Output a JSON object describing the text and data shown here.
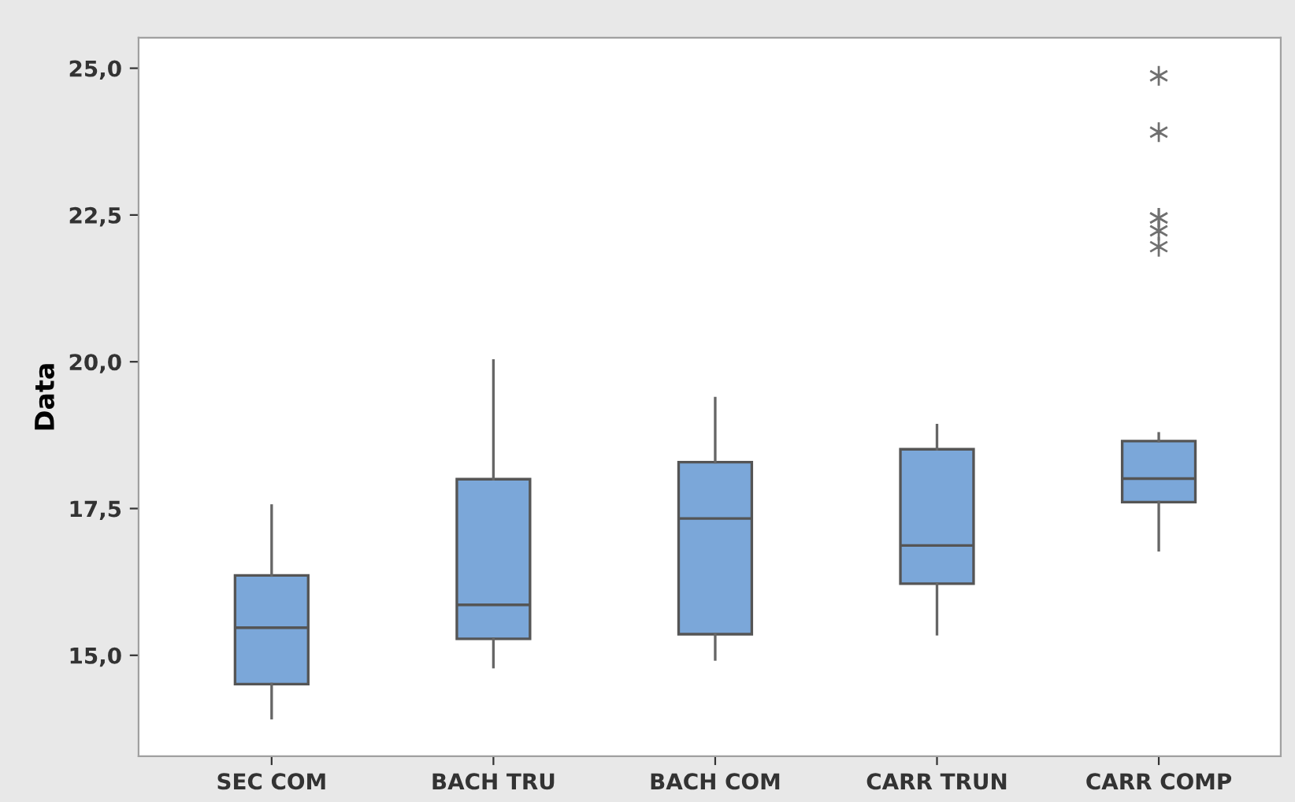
{
  "chart_data": {
    "type": "box",
    "ylabel": "Data",
    "categories": [
      "SEC COM",
      "BACH TRU",
      "BACH COM",
      "CARR TRUN",
      "CARR COMP"
    ],
    "color": "#7ba7d9",
    "boxes": [
      {
        "low": 13.93,
        "q1": 14.51,
        "median": 15.47,
        "q3": 16.36,
        "high": 17.55
      },
      {
        "low": 14.8,
        "q1": 15.28,
        "median": 15.86,
        "q3": 18.0,
        "high": 20.02
      },
      {
        "low": 14.93,
        "q1": 15.36,
        "median": 17.33,
        "q3": 18.29,
        "high": 19.38
      },
      {
        "low": 15.36,
        "q1": 16.22,
        "median": 16.87,
        "q3": 18.51,
        "high": 18.92
      },
      {
        "low": 16.79,
        "q1": 17.61,
        "median": 18.01,
        "q3": 18.65,
        "high": 18.78,
        "outliers": [
          24.87,
          23.91,
          22.45,
          22.45,
          22.23,
          21.96
        ]
      }
    ],
    "marker": "star",
    "ylim": [
      13.28,
      25.52
    ],
    "yticks": [
      {
        "value": 15,
        "label": "15,0"
      },
      {
        "value": 17.5,
        "label": "17,5"
      },
      {
        "value": 20,
        "label": "20,0"
      },
      {
        "value": 22.5,
        "label": "22,5"
      },
      {
        "value": 25,
        "label": "25,0"
      }
    ],
    "grid": false
  }
}
